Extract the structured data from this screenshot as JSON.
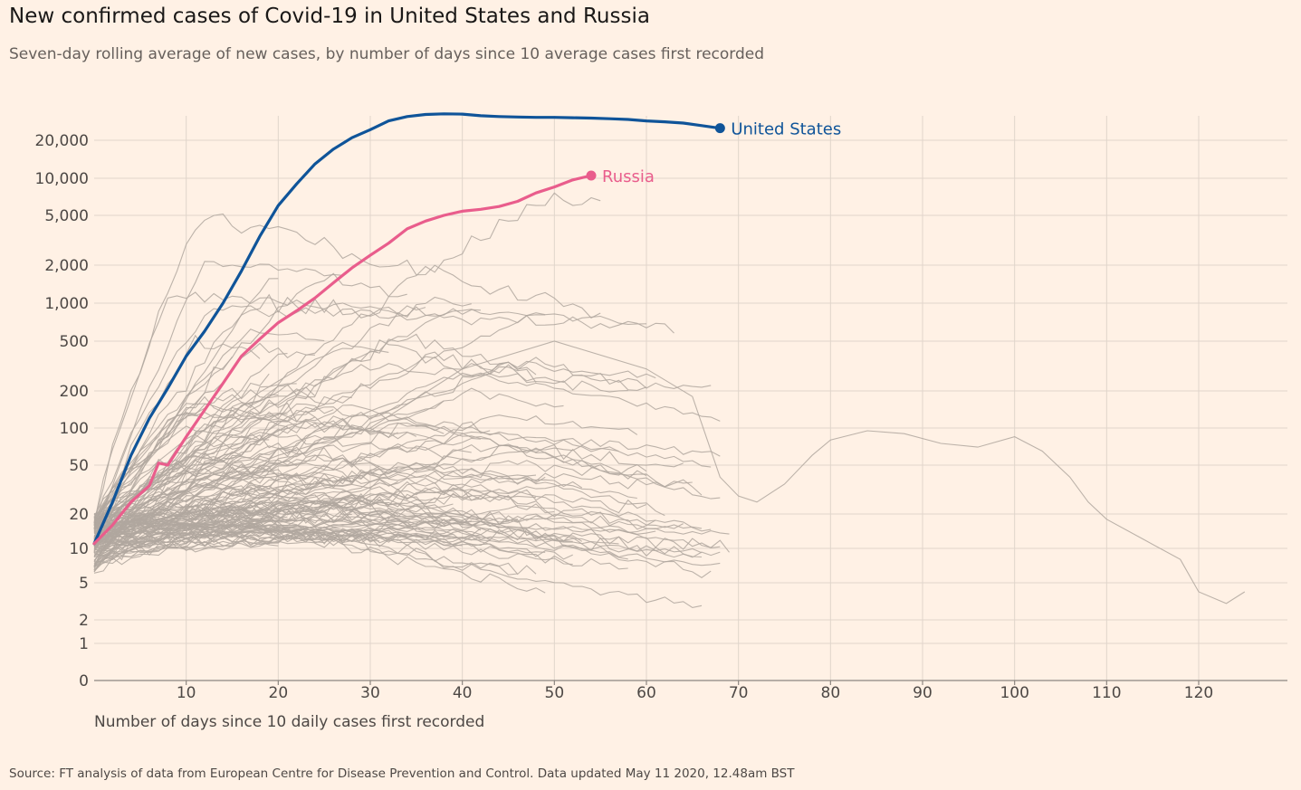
{
  "header": {
    "title": "New confirmed cases of Covid-19 in United States and Russia",
    "subtitle": "Seven-day rolling average of new cases, by number of days since 10 average cases first recorded"
  },
  "footer": {
    "source": "Source: FT analysis of data from European Centre for Disease Prevention and Control. Data updated May 11 2020, 12.48am BST"
  },
  "chart_data": {
    "type": "line",
    "y_scale": "log",
    "xlim": [
      0,
      130
    ],
    "xlabel": "Number of days since 10 daily cases first recorded",
    "x_ticks": [
      10,
      20,
      30,
      40,
      50,
      60,
      70,
      80,
      90,
      100,
      110,
      120
    ],
    "y_ticks": [
      {
        "value": 0,
        "label": "0"
      },
      {
        "value": 1,
        "label": "1"
      },
      {
        "value": 2,
        "label": "2"
      },
      {
        "value": 5,
        "label": "5"
      },
      {
        "value": 10,
        "label": "10"
      },
      {
        "value": 20,
        "label": "20"
      },
      {
        "value": 50,
        "label": "50"
      },
      {
        "value": 100,
        "label": "100"
      },
      {
        "value": 200,
        "label": "200"
      },
      {
        "value": 500,
        "label": "500"
      },
      {
        "value": 1000,
        "label": "1,000"
      },
      {
        "value": 2000,
        "label": "2,000"
      },
      {
        "value": 5000,
        "label": "5,000"
      },
      {
        "value": 10000,
        "label": "10,000"
      },
      {
        "value": 20000,
        "label": "20,000"
      }
    ],
    "grid": true,
    "highlight_series": [
      {
        "name": "United States",
        "color": "#0f5499",
        "x": [
          0,
          2,
          4,
          6,
          8,
          10,
          12,
          14,
          16,
          18,
          20,
          22,
          24,
          26,
          28,
          30,
          32,
          34,
          36,
          38,
          40,
          42,
          44,
          46,
          48,
          50,
          52,
          54,
          56,
          58,
          60,
          62,
          64,
          66,
          68
        ],
        "y": [
          11,
          25,
          60,
          120,
          210,
          380,
          600,
          1000,
          1800,
          3400,
          6000,
          9000,
          13000,
          17000,
          21000,
          24500,
          29000,
          31500,
          32800,
          33200,
          33000,
          32000,
          31500,
          31200,
          31000,
          31000,
          30800,
          30600,
          30200,
          29800,
          29000,
          28500,
          27800,
          26500,
          25200
        ]
      },
      {
        "name": "Russia",
        "color": "#e95d8c",
        "x": [
          0,
          2,
          4,
          6,
          7,
          8,
          10,
          12,
          14,
          16,
          18,
          20,
          22,
          24,
          26,
          28,
          30,
          32,
          34,
          36,
          38,
          40,
          42,
          44,
          46,
          48,
          50,
          52,
          54
        ],
        "y": [
          11,
          16,
          25,
          34,
          52,
          50,
          85,
          140,
          230,
          380,
          520,
          700,
          870,
          1100,
          1450,
          1900,
          2400,
          3000,
          3900,
          4500,
          5000,
          5400,
          5600,
          5900,
          6500,
          7600,
          8500,
          9700,
          10500
        ]
      }
    ],
    "background_series_count": 140,
    "background_color": "#b0a79f"
  }
}
